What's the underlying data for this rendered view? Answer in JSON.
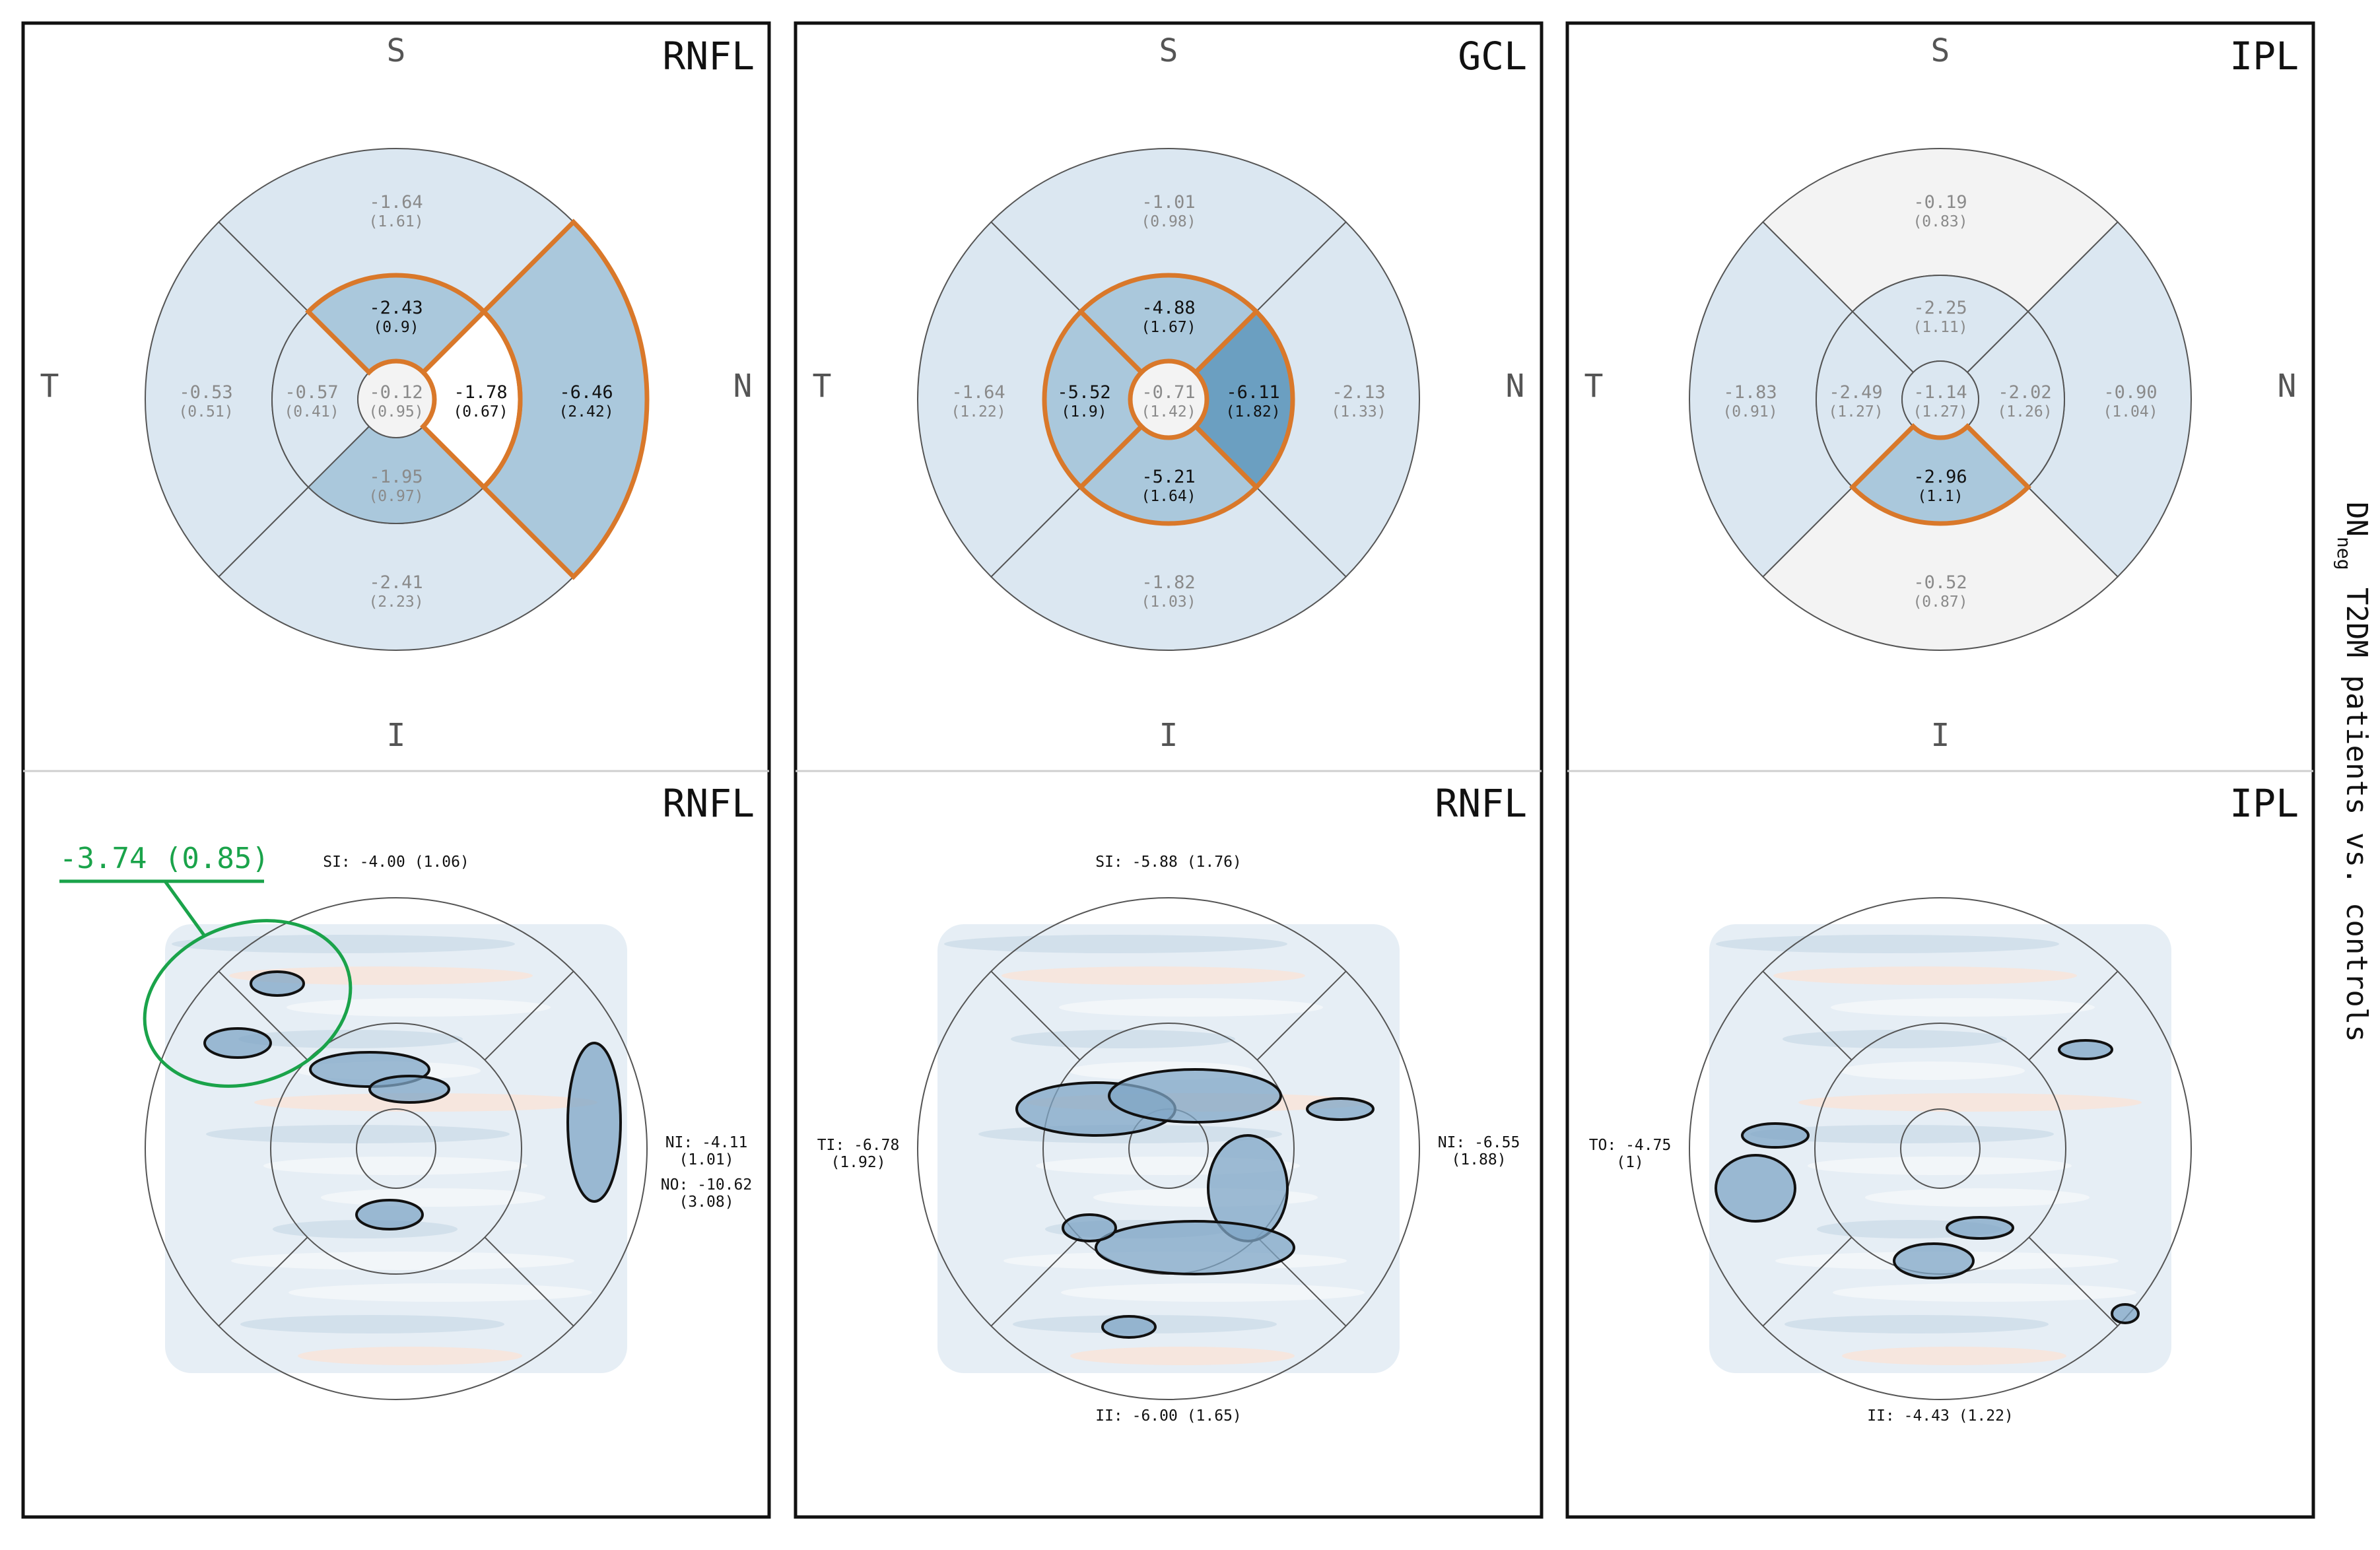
{
  "compass": {
    "s": "S",
    "t": "T",
    "n": "N",
    "i": "I"
  },
  "side_label": {
    "main": "DN",
    "sub": "neg",
    "rest": " T2DM patients vs. controls"
  },
  "callout": {
    "text": "-3.74 (0.85)"
  },
  "colors": {
    "light": "#dbe7f1",
    "mid": "#aac8dc",
    "dark": "#6b9fc1",
    "near_white": "#f3f3f3",
    "highlight": "#d9782a",
    "callout": "#1aa34a"
  },
  "panels": [
    {
      "title": "RNFL",
      "map_title": "RNFL",
      "center": {
        "value": "-0.12",
        "sd": "(0.95)",
        "shade": "near_white",
        "hl": false
      },
      "inner": [
        {
          "dir": "S",
          "value": "-2.43",
          "sd": "(0.9)",
          "shade": "mid",
          "hl": true
        },
        {
          "dir": "N",
          "value": "-1.78",
          "sd": "(0.67)",
          "shade": "white",
          "hl": true
        },
        {
          "dir": "I",
          "value": "-1.95",
          "sd": "(0.97)",
          "shade": "mid",
          "hl": false
        },
        {
          "dir": "T",
          "value": "-0.57",
          "sd": "(0.41)",
          "shade": "light",
          "hl": false
        }
      ],
      "outer": [
        {
          "dir": "S",
          "value": "-1.64",
          "sd": "(1.61)",
          "shade": "light",
          "hl": false
        },
        {
          "dir": "N",
          "value": "-6.46",
          "sd": "(2.42)",
          "shade": "mid",
          "hl": true
        },
        {
          "dir": "I",
          "value": "-2.41",
          "sd": "(2.23)",
          "shade": "light",
          "hl": false
        },
        {
          "dir": "T",
          "value": "-0.53",
          "sd": "(0.51)",
          "shade": "light",
          "hl": false
        }
      ],
      "map_labels": [
        {
          "pos": "top",
          "text": "SI: -4.00 (1.06)"
        },
        {
          "pos": "right1",
          "text": "NI: -4.11"
        },
        {
          "pos": "right1b",
          "text": "(1.01)"
        },
        {
          "pos": "right2",
          "text": "NO: -10.62"
        },
        {
          "pos": "right2b",
          "text": "(3.08)"
        }
      ]
    },
    {
      "title": "GCL",
      "map_title": "RNFL",
      "center": {
        "value": "-0.71",
        "sd": "(1.42)",
        "shade": "near_white",
        "hl": false
      },
      "inner": [
        {
          "dir": "S",
          "value": "-4.88",
          "sd": "(1.67)",
          "shade": "mid",
          "hl": true
        },
        {
          "dir": "N",
          "value": "-6.11",
          "sd": "(1.82)",
          "shade": "dark",
          "hl": true
        },
        {
          "dir": "I",
          "value": "-5.21",
          "sd": "(1.64)",
          "shade": "mid",
          "hl": true
        },
        {
          "dir": "T",
          "value": "-5.52",
          "sd": "(1.9)",
          "shade": "mid",
          "hl": true
        }
      ],
      "outer": [
        {
          "dir": "S",
          "value": "-1.01",
          "sd": "(0.98)",
          "shade": "light",
          "hl": false
        },
        {
          "dir": "N",
          "value": "-2.13",
          "sd": "(1.33)",
          "shade": "light",
          "hl": false
        },
        {
          "dir": "I",
          "value": "-1.82",
          "sd": "(1.03)",
          "shade": "light",
          "hl": false
        },
        {
          "dir": "T",
          "value": "-1.64",
          "sd": "(1.22)",
          "shade": "light",
          "hl": false
        }
      ],
      "map_labels": [
        {
          "pos": "top",
          "text": "SI: -5.88 (1.76)"
        },
        {
          "pos": "left1",
          "text": "TI: -6.78"
        },
        {
          "pos": "left1b",
          "text": "(1.92)"
        },
        {
          "pos": "right1",
          "text": "NI: -6.55"
        },
        {
          "pos": "right1b",
          "text": "(1.88)"
        },
        {
          "pos": "bottom",
          "text": "II: -6.00 (1.65)"
        }
      ]
    },
    {
      "title": "IPL",
      "map_title": "IPL",
      "center": {
        "value": "-1.14",
        "sd": "(1.27)",
        "shade": "light",
        "hl": false
      },
      "inner": [
        {
          "dir": "S",
          "value": "-2.25",
          "sd": "(1.11)",
          "shade": "light",
          "hl": false
        },
        {
          "dir": "N",
          "value": "-2.02",
          "sd": "(1.26)",
          "shade": "light",
          "hl": false
        },
        {
          "dir": "I",
          "value": "-2.96",
          "sd": "(1.1)",
          "shade": "mid",
          "hl": true
        },
        {
          "dir": "T",
          "value": "-2.49",
          "sd": "(1.27)",
          "shade": "light",
          "hl": false
        }
      ],
      "outer": [
        {
          "dir": "S",
          "value": "-0.19",
          "sd": "(0.83)",
          "shade": "near_white",
          "hl": false
        },
        {
          "dir": "N",
          "value": "-0.90",
          "sd": "(1.04)",
          "shade": "light",
          "hl": false
        },
        {
          "dir": "I",
          "value": "-0.52",
          "sd": "(0.87)",
          "shade": "near_white",
          "hl": false
        },
        {
          "dir": "T",
          "value": "-1.83",
          "sd": "(0.91)",
          "shade": "light",
          "hl": false
        }
      ],
      "map_labels": [
        {
          "pos": "left1",
          "text": "TO: -4.75"
        },
        {
          "pos": "left1b",
          "text": "(1)"
        },
        {
          "pos": "bottom",
          "text": "II: -4.43 (1.22)"
        }
      ]
    }
  ]
}
